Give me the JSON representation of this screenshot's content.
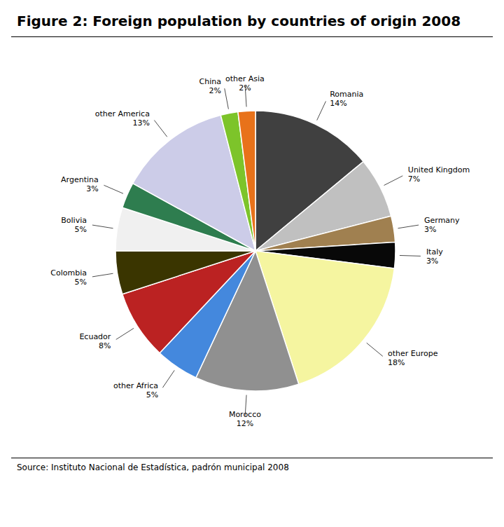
{
  "chart_data": {
    "type": "pie",
    "title": "Figure 2: Foreign population by countries of origin 2008",
    "annotations": [
      "Source: Instituto Nacional de Estadística, padrón municipal 2008"
    ],
    "categories": [
      "Romania",
      "United Kingdom",
      "Germany",
      "Italy",
      "other Europe",
      "Morocco",
      "other Africa",
      "Ecuador",
      "Colombia",
      "Bolivia",
      "Argentina",
      "other America",
      "China",
      "other Asia"
    ],
    "values": [
      14,
      7,
      3,
      3,
      18,
      12,
      5,
      8,
      5,
      5,
      3,
      13,
      2,
      2
    ],
    "value_labels": [
      "14%",
      "7%",
      "3%",
      "3%",
      "18%",
      "12%",
      "5%",
      "8%",
      "5%",
      "5%",
      "3%",
      "13%",
      "2%",
      "2%"
    ],
    "colors": [
      "#404040",
      "#c0c0c0",
      "#a08050",
      "#080808",
      "#f5f5a0",
      "#909090",
      "#4488dd",
      "#bb2222",
      "#3a3500",
      "#f0f0f0",
      "#2e7d4f",
      "#cccce8",
      "#7dc42a",
      "#e8721a"
    ],
    "data_labels": true
  }
}
